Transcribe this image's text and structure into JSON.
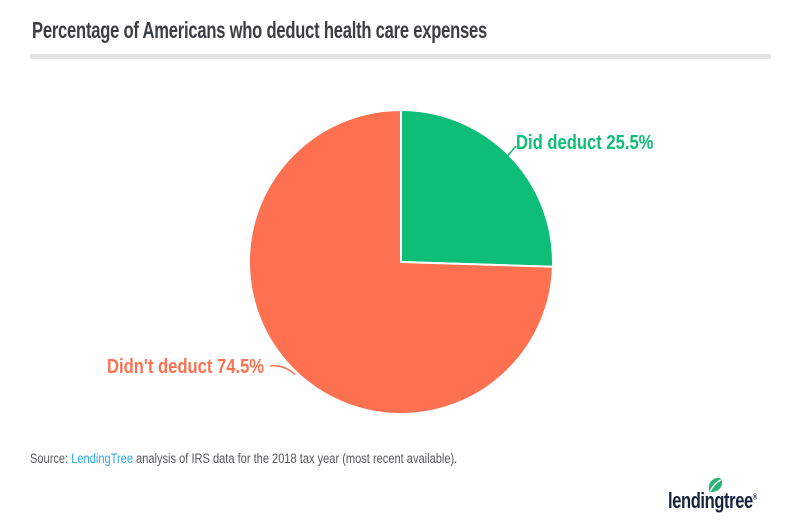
{
  "chart_data": {
    "type": "pie",
    "title": "Percentage of Americans who deduct health care expenses",
    "slices": [
      {
        "id": "did-deduct",
        "label": "Did deduct",
        "value": 25.5,
        "callout": "Did deduct 25.5%",
        "color": "#0ebd77"
      },
      {
        "id": "didnt-deduct",
        "label": "Didn't deduct",
        "value": 74.5,
        "callout": "Didn't deduct 74.5%",
        "color": "#fd7050"
      }
    ],
    "start_angle_deg": -90,
    "direction": "clockwise",
    "separator_color": "#ffffff",
    "legend_position": "callouts"
  },
  "source": {
    "prefix": "Source: ",
    "link_text": "LendingTree",
    "suffix": " analysis of IRS data for the 2018 tax year (most recent available).",
    "link_color": "#2ca8e0",
    "text_color": "#55585c"
  },
  "logo": {
    "wordmark": "lendingtree",
    "registered": "®",
    "navy": "#16233f",
    "leaf_green": "#29b473"
  },
  "colors": {
    "title_text": "#3b3f43",
    "divider": "#e3e3e3",
    "background": "#ffffff"
  }
}
